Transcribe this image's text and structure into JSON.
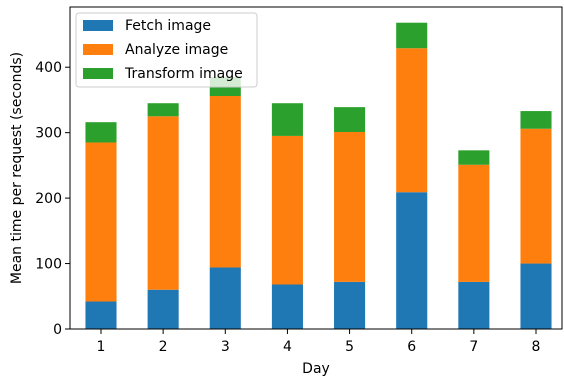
{
  "chart_data": {
    "type": "bar",
    "stacked": true,
    "categories": [
      "1",
      "2",
      "3",
      "4",
      "5",
      "6",
      "7",
      "8"
    ],
    "series": [
      {
        "name": "Fetch image",
        "color": "#1f77b4",
        "values": [
          42,
          60,
          94,
          68,
          72,
          209,
          72,
          100
        ]
      },
      {
        "name": "Analyze image",
        "color": "#ff7f0e",
        "values": [
          243,
          265,
          262,
          227,
          229,
          220,
          179,
          206
        ]
      },
      {
        "name": "Transform image",
        "color": "#2ca02c",
        "values": [
          31,
          20,
          29,
          50,
          38,
          39,
          22,
          27
        ]
      }
    ],
    "xlabel": "Day",
    "ylabel": "Mean time per request (seconds)",
    "ylim": [
      0,
      492
    ],
    "yticks": [
      0,
      100,
      200,
      300,
      400
    ],
    "grid": false,
    "legend_position": "top-left"
  }
}
